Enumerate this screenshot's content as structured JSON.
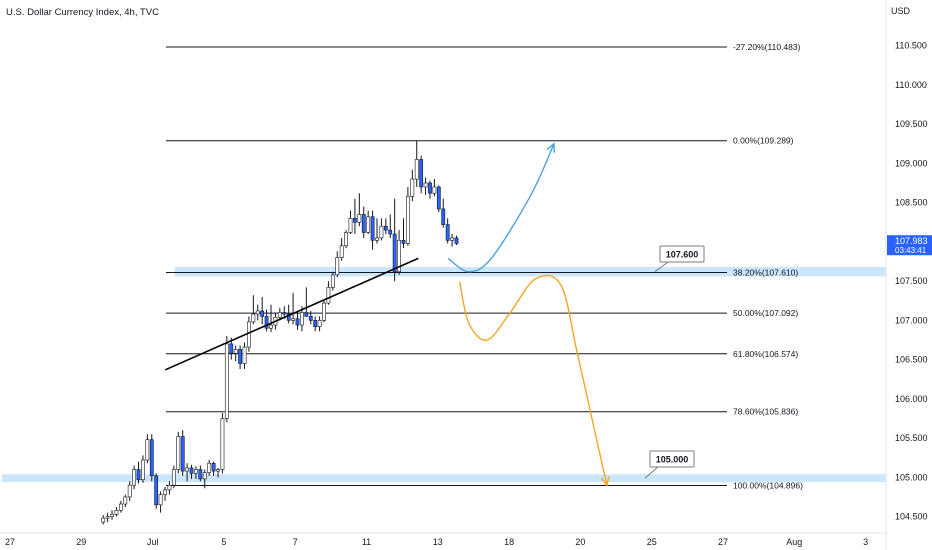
{
  "chart_data": {
    "type": "candlestick",
    "title": "U.S. Dollar Currency Index, 4h, TVC",
    "price_axis_label": "USD",
    "y_ticks": [
      "110.500",
      "110.000",
      "109.500",
      "109.000",
      "108.500",
      "108.000",
      "107.500",
      "107.000",
      "106.500",
      "106.000",
      "105.500",
      "105.000",
      "104.500"
    ],
    "ylim": [
      104.38,
      110.98
    ],
    "x_ticks": [
      {
        "i": 0,
        "label": "27"
      },
      {
        "i": 31,
        "label": "29"
      },
      {
        "i": 62,
        "label": "Jul"
      },
      {
        "i": 93,
        "label": "5"
      },
      {
        "i": 124,
        "label": "7"
      },
      {
        "i": 155,
        "label": "11"
      },
      {
        "i": 186,
        "label": "13"
      },
      {
        "i": 217,
        "label": "18"
      },
      {
        "i": 248,
        "label": "20"
      },
      {
        "i": 279,
        "label": "25"
      },
      {
        "i": 310,
        "label": "27"
      },
      {
        "i": 341,
        "label": "Aug"
      },
      {
        "i": 372,
        "label": "3"
      }
    ],
    "candles_ohlc": [
      [
        104.43,
        104.52,
        104.4,
        104.48
      ],
      [
        104.48,
        104.55,
        104.43,
        104.5
      ],
      [
        104.5,
        104.58,
        104.46,
        104.53
      ],
      [
        104.53,
        104.62,
        104.5,
        104.58
      ],
      [
        104.58,
        104.7,
        104.55,
        104.66
      ],
      [
        104.66,
        104.78,
        104.62,
        104.75
      ],
      [
        104.75,
        104.95,
        104.7,
        104.9
      ],
      [
        104.9,
        105.15,
        104.85,
        105.1
      ],
      [
        105.1,
        105.2,
        104.92,
        104.97
      ],
      [
        104.97,
        105.28,
        104.93,
        105.22
      ],
      [
        105.22,
        105.55,
        105.18,
        105.48
      ],
      [
        105.48,
        105.55,
        104.95,
        105.02
      ],
      [
        105.02,
        105.05,
        104.6,
        104.65
      ],
      [
        104.65,
        104.82,
        104.55,
        104.78
      ],
      [
        104.78,
        104.88,
        104.7,
        104.84
      ],
      [
        104.84,
        104.95,
        104.78,
        104.9
      ],
      [
        104.9,
        105.15,
        104.86,
        105.1
      ],
      [
        105.1,
        105.58,
        105.05,
        105.52
      ],
      [
        105.52,
        105.6,
        105.02,
        105.08
      ],
      [
        105.08,
        105.18,
        104.95,
        105.12
      ],
      [
        105.12,
        105.16,
        104.98,
        105.05
      ],
      [
        105.05,
        105.14,
        104.98,
        105.1
      ],
      [
        105.1,
        105.15,
        104.95,
        104.98
      ],
      [
        104.98,
        105.1,
        104.86,
        105.06
      ],
      [
        105.06,
        105.22,
        105.02,
        105.18
      ],
      [
        105.18,
        105.2,
        105.02,
        105.08
      ],
      [
        105.08,
        105.12,
        105.0,
        105.1
      ],
      [
        105.1,
        105.82,
        105.05,
        105.75
      ],
      [
        105.75,
        106.8,
        105.7,
        106.7
      ],
      [
        106.7,
        106.78,
        106.5,
        106.58
      ],
      [
        106.58,
        106.68,
        106.48,
        106.63
      ],
      [
        106.63,
        106.68,
        106.38,
        106.45
      ],
      [
        106.45,
        106.72,
        106.38,
        106.66
      ],
      [
        106.66,
        107.05,
        106.6,
        106.98
      ],
      [
        106.98,
        107.32,
        106.95,
        107.08
      ],
      [
        107.08,
        107.2,
        107.0,
        107.12
      ],
      [
        107.12,
        107.3,
        106.95,
        107.05
      ],
      [
        107.05,
        107.14,
        106.86,
        106.9
      ],
      [
        106.9,
        107.2,
        106.85,
        106.94
      ],
      [
        106.94,
        107.1,
        106.88,
        107.04
      ],
      [
        107.04,
        107.16,
        107.0,
        107.1
      ],
      [
        107.1,
        107.18,
        107.02,
        107.08
      ],
      [
        107.08,
        107.2,
        106.96,
        107.0
      ],
      [
        107.0,
        107.35,
        106.95,
        107.02
      ],
      [
        107.02,
        107.12,
        106.88,
        106.94
      ],
      [
        106.94,
        107.18,
        106.86,
        107.1
      ],
      [
        107.1,
        107.42,
        107.05,
        107.05
      ],
      [
        107.05,
        107.12,
        106.95,
        107.0
      ],
      [
        107.0,
        107.05,
        106.86,
        106.92
      ],
      [
        106.92,
        107.05,
        106.86,
        107.0
      ],
      [
        107.0,
        107.25,
        106.98,
        107.22
      ],
      [
        107.22,
        107.5,
        107.2,
        107.42
      ],
      [
        107.42,
        107.62,
        107.38,
        107.58
      ],
      [
        107.58,
        107.88,
        107.55,
        107.8
      ],
      [
        107.8,
        108.05,
        107.76,
        107.95
      ],
      [
        107.95,
        108.15,
        107.92,
        108.12
      ],
      [
        108.12,
        108.4,
        108.1,
        108.3
      ],
      [
        108.3,
        108.55,
        108.1,
        108.25
      ],
      [
        108.25,
        108.62,
        108.2,
        108.35
      ],
      [
        108.35,
        108.45,
        108.05,
        108.12
      ],
      [
        108.12,
        108.4,
        108.1,
        108.32
      ],
      [
        108.32,
        108.4,
        107.9,
        108.02
      ],
      [
        108.02,
        108.3,
        107.98,
        108.05
      ],
      [
        108.05,
        108.3,
        108.02,
        108.2
      ],
      [
        108.2,
        108.3,
        108.1,
        108.15
      ],
      [
        108.15,
        108.35,
        108.05,
        108.1
      ],
      [
        108.1,
        108.55,
        107.5,
        107.62
      ],
      [
        107.62,
        108.15,
        107.58,
        108.02
      ],
      [
        108.02,
        108.3,
        107.92,
        107.98
      ],
      [
        107.98,
        108.7,
        107.95,
        108.58
      ],
      [
        108.58,
        108.92,
        108.52,
        108.8
      ],
      [
        108.8,
        109.29,
        108.7,
        109.05
      ],
      [
        109.05,
        109.1,
        108.62,
        108.7
      ],
      [
        108.7,
        108.82,
        108.6,
        108.75
      ],
      [
        108.75,
        108.78,
        108.55,
        108.62
      ],
      [
        108.62,
        108.8,
        108.58,
        108.7
      ],
      [
        108.7,
        108.72,
        108.38,
        108.42
      ],
      [
        108.42,
        108.55,
        108.18,
        108.22
      ],
      [
        108.22,
        108.3,
        107.98,
        108.02
      ],
      [
        108.02,
        108.1,
        107.94,
        108.05
      ],
      [
        108.05,
        108.08,
        107.96,
        107.98
      ]
    ],
    "candle_start_index": 44,
    "fib_levels": [
      {
        "label": "-27.20%(110.483)",
        "price": 110.483
      },
      {
        "label": "0.00%(109.289)",
        "price": 109.289
      },
      {
        "label": "38.20%(107.610)",
        "price": 107.61
      },
      {
        "label": "50.00%(107.092)",
        "price": 107.092
      },
      {
        "label": "61.80%(106.574)",
        "price": 106.574
      },
      {
        "label": "78.60%(105.836)",
        "price": 105.836
      },
      {
        "label": "100.00%(104.896)",
        "price": 104.896
      }
    ],
    "support_zones": [
      {
        "label": "107.600",
        "low": 107.56,
        "high": 107.68,
        "x_start_index": 75
      },
      {
        "label": "105.000",
        "low": 104.94,
        "high": 105.04,
        "x_start_index": 0
      }
    ],
    "trendline": {
      "from": {
        "i": 71,
        "price": 106.37
      },
      "to": {
        "i": 181,
        "price": 107.79
      }
    },
    "scenario_paths": [
      {
        "name": "bullish",
        "color": "#4aa3df",
        "points": [
          [
            194,
            107.79
          ],
          [
            203,
            107.62
          ],
          [
            213,
            107.8
          ],
          [
            230,
            108.6
          ],
          [
            240,
            109.25
          ]
        ]
      },
      {
        "name": "bearish",
        "color": "#f5a623",
        "points": [
          [
            199,
            107.49
          ],
          [
            203,
            106.96
          ],
          [
            211,
            106.75
          ],
          [
            221,
            107.1
          ],
          [
            232,
            107.53
          ],
          [
            243,
            107.45
          ],
          [
            250,
            106.6
          ],
          [
            258,
            105.55
          ],
          [
            263,
            104.9
          ]
        ]
      }
    ],
    "last_price": {
      "value": "107.983",
      "countdown": "03:43:41"
    },
    "colors": {
      "up": "#ffffff",
      "down": "#2962ff",
      "wick": "#131722",
      "zone": "#bbdefb",
      "price_tag": "#2962ff"
    }
  }
}
